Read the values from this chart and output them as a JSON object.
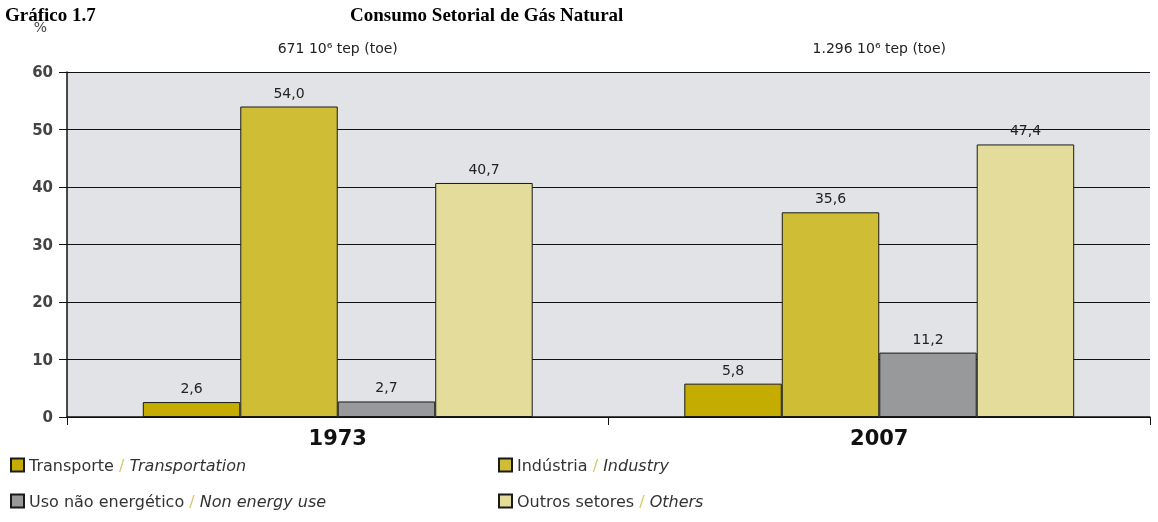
{
  "chart_data": {
    "type": "bar",
    "title": "Consumo Setorial de Gás Natural",
    "subtitle": "Gráfico 1.7",
    "ylabel": "%",
    "categories": [
      "1973",
      "2007"
    ],
    "series": [
      {
        "name": "Transporte / Transportation",
        "color": "#c4ac00",
        "values": [
          2.6,
          5.8
        ],
        "value_labels": [
          "2,6",
          "5,8"
        ]
      },
      {
        "name": "Indústria / Industry",
        "color": "#cfbd35",
        "values": [
          54.0,
          35.6
        ],
        "value_labels": [
          "54,0",
          "35,6"
        ]
      },
      {
        "name": "Uso não energético / Non energy use",
        "color": "#97999b",
        "values": [
          2.7,
          11.2
        ],
        "value_labels": [
          "2,7",
          "11,2"
        ]
      },
      {
        "name": "Outros setores / Others",
        "color": "#e3dc9a",
        "values": [
          40.7,
          47.4
        ],
        "value_labels": [
          "40,7",
          "47,4"
        ]
      }
    ],
    "ylim": [
      0,
      60
    ],
    "yticks": [
      0,
      10,
      20,
      30,
      40,
      50,
      60
    ],
    "grid": "y",
    "legend": "bottom left",
    "annotations": [
      "671 10⁶ tep (toe)",
      "1.296 10⁶ tep (toe)"
    ]
  }
}
